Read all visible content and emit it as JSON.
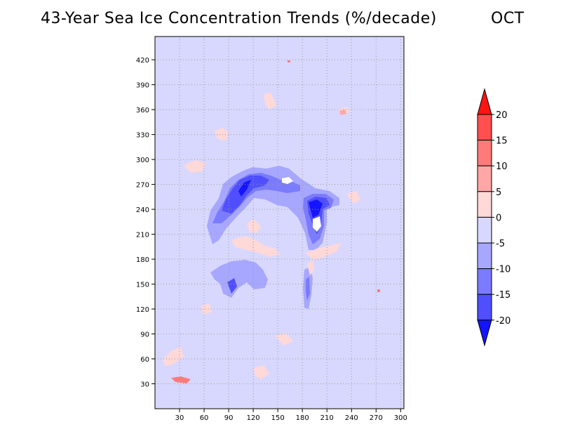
{
  "title": "43-Year Sea Ice Concentration Trends (%/decade)",
  "month": "OCT",
  "chart_data": {
    "type": "heatmap",
    "title": "43-Year Sea Ice Concentration Trends (%/decade)",
    "month": "OCT",
    "xlim": [
      0,
      304
    ],
    "ylim": [
      0,
      448
    ],
    "xticks": [
      30,
      60,
      90,
      120,
      150,
      180,
      210,
      240,
      270,
      300
    ],
    "yticks": [
      30,
      60,
      90,
      120,
      150,
      180,
      210,
      240,
      270,
      300,
      330,
      360,
      390,
      420
    ],
    "grid": true,
    "colorbar": {
      "levels": [
        -20,
        -15,
        -10,
        -5,
        0,
        5,
        10,
        15,
        20
      ],
      "labels": [
        "-20",
        "-15",
        "-10",
        "-5",
        "0",
        "5",
        "10",
        "15",
        "20"
      ],
      "colors": [
        "#1414ff",
        "#4f4fff",
        "#7b7bff",
        "#a7a7ff",
        "#d8d8ff",
        "#ffd8d8",
        "#ffa7a7",
        "#ff7b7b",
        "#ff4f4f",
        "#ff1414"
      ],
      "extend": "both",
      "placement": "right"
    }
  }
}
